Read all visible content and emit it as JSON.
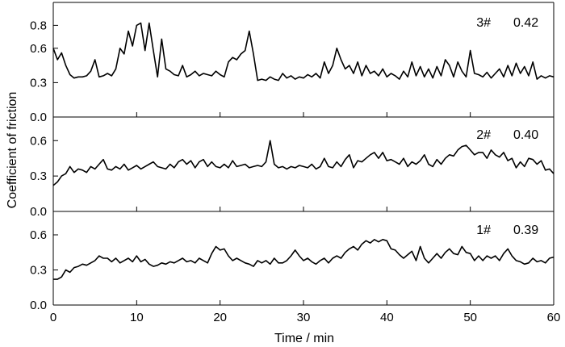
{
  "chart_data": {
    "type": "line",
    "title": "",
    "xlabel": "Time / min",
    "ylabel": "Coefficient of friction",
    "xlim": [
      0,
      60
    ],
    "x_ticks": [
      0,
      10,
      20,
      30,
      40,
      50,
      60
    ],
    "x_tick_labels": [
      "0",
      "10",
      "20",
      "30",
      "40",
      "50",
      "60"
    ],
    "grid": false,
    "panels": [
      {
        "label": "3#",
        "value": "0.42",
        "ylim": [
          0,
          1.0
        ],
        "y_ticks": [
          0.0,
          0.3,
          0.6,
          0.8
        ],
        "y_tick_labels": [
          "0.0",
          "0.3",
          "0.6",
          "0.8"
        ],
        "x": [
          0,
          0.5,
          1,
          1.5,
          2,
          2.5,
          3,
          3.5,
          4,
          4.5,
          5,
          5.5,
          6,
          6.5,
          7,
          7.5,
          8,
          8.5,
          9,
          9.5,
          10,
          10.5,
          11,
          11.5,
          12,
          12.5,
          13,
          13.5,
          14,
          14.5,
          15,
          15.5,
          16,
          16.5,
          17,
          17.5,
          18,
          18.5,
          19,
          19.5,
          20,
          20.5,
          21,
          21.5,
          22,
          22.5,
          23,
          23.5,
          24,
          24.5,
          25,
          25.5,
          26,
          26.5,
          27,
          27.5,
          28,
          28.5,
          29,
          29.5,
          30,
          30.5,
          31,
          31.5,
          32,
          32.5,
          33,
          33.5,
          34,
          34.5,
          35,
          35.5,
          36,
          36.5,
          37,
          37.5,
          38,
          38.5,
          39,
          39.5,
          40,
          40.5,
          41,
          41.5,
          42,
          42.5,
          43,
          43.5,
          44,
          44.5,
          45,
          45.5,
          46,
          46.5,
          47,
          47.5,
          48,
          48.5,
          49,
          49.5,
          50,
          50.5,
          51,
          51.5,
          52,
          52.5,
          53,
          53.5,
          54,
          54.5,
          55,
          55.5,
          56,
          56.5,
          57,
          57.5,
          58,
          58.5,
          59,
          59.5,
          60
        ],
        "y": [
          0.6,
          0.5,
          0.56,
          0.45,
          0.37,
          0.34,
          0.35,
          0.35,
          0.36,
          0.4,
          0.5,
          0.35,
          0.36,
          0.38,
          0.36,
          0.42,
          0.6,
          0.55,
          0.75,
          0.62,
          0.8,
          0.82,
          0.58,
          0.82,
          0.58,
          0.35,
          0.68,
          0.42,
          0.4,
          0.37,
          0.36,
          0.45,
          0.35,
          0.37,
          0.4,
          0.36,
          0.38,
          0.37,
          0.36,
          0.4,
          0.37,
          0.35,
          0.48,
          0.52,
          0.5,
          0.55,
          0.58,
          0.75,
          0.55,
          0.32,
          0.33,
          0.32,
          0.35,
          0.33,
          0.32,
          0.38,
          0.34,
          0.36,
          0.33,
          0.35,
          0.34,
          0.37,
          0.35,
          0.38,
          0.34,
          0.48,
          0.38,
          0.45,
          0.6,
          0.5,
          0.42,
          0.45,
          0.38,
          0.48,
          0.36,
          0.45,
          0.38,
          0.4,
          0.36,
          0.42,
          0.35,
          0.38,
          0.36,
          0.33,
          0.4,
          0.35,
          0.48,
          0.36,
          0.44,
          0.35,
          0.42,
          0.34,
          0.44,
          0.36,
          0.5,
          0.45,
          0.35,
          0.48,
          0.4,
          0.35,
          0.58,
          0.38,
          0.37,
          0.35,
          0.39,
          0.34,
          0.38,
          0.42,
          0.35,
          0.45,
          0.36,
          0.47,
          0.38,
          0.44,
          0.36,
          0.48,
          0.33,
          0.36,
          0.34,
          0.36,
          0.35
        ]
      },
      {
        "label": "2#",
        "value": "0.40",
        "ylim": [
          0,
          0.8
        ],
        "y_ticks": [
          0.0,
          0.3,
          0.6
        ],
        "y_tick_labels": [
          "0.0",
          "0.3",
          "0.6"
        ],
        "x": [
          0,
          0.5,
          1,
          1.5,
          2,
          2.5,
          3,
          3.5,
          4,
          4.5,
          5,
          5.5,
          6,
          6.5,
          7,
          7.5,
          8,
          8.5,
          9,
          9.5,
          10,
          10.5,
          11,
          11.5,
          12,
          12.5,
          13,
          13.5,
          14,
          14.5,
          15,
          15.5,
          16,
          16.5,
          17,
          17.5,
          18,
          18.5,
          19,
          19.5,
          20,
          20.5,
          21,
          21.5,
          22,
          22.5,
          23,
          23.5,
          24,
          24.5,
          25,
          25.5,
          26,
          26.5,
          27,
          27.5,
          28,
          28.5,
          29,
          29.5,
          30,
          30.5,
          31,
          31.5,
          32,
          32.5,
          33,
          33.5,
          34,
          34.5,
          35,
          35.5,
          36,
          36.5,
          37,
          37.5,
          38,
          38.5,
          39,
          39.5,
          40,
          40.5,
          41,
          41.5,
          42,
          42.5,
          43,
          43.5,
          44,
          44.5,
          45,
          45.5,
          46,
          46.5,
          47,
          47.5,
          48,
          48.5,
          49,
          49.5,
          50,
          50.5,
          51,
          51.5,
          52,
          52.5,
          53,
          53.5,
          54,
          54.5,
          55,
          55.5,
          56,
          56.5,
          57,
          57.5,
          58,
          58.5,
          59,
          59.5,
          60
        ],
        "y": [
          0.22,
          0.25,
          0.3,
          0.32,
          0.38,
          0.33,
          0.36,
          0.35,
          0.33,
          0.38,
          0.36,
          0.4,
          0.44,
          0.36,
          0.35,
          0.38,
          0.36,
          0.4,
          0.35,
          0.37,
          0.39,
          0.36,
          0.38,
          0.4,
          0.42,
          0.38,
          0.37,
          0.36,
          0.4,
          0.37,
          0.42,
          0.44,
          0.4,
          0.43,
          0.37,
          0.42,
          0.44,
          0.38,
          0.42,
          0.38,
          0.37,
          0.4,
          0.37,
          0.43,
          0.38,
          0.39,
          0.4,
          0.37,
          0.38,
          0.39,
          0.38,
          0.42,
          0.6,
          0.4,
          0.37,
          0.38,
          0.36,
          0.38,
          0.37,
          0.39,
          0.38,
          0.37,
          0.4,
          0.36,
          0.38,
          0.45,
          0.38,
          0.37,
          0.42,
          0.38,
          0.44,
          0.48,
          0.37,
          0.43,
          0.42,
          0.45,
          0.48,
          0.5,
          0.45,
          0.5,
          0.43,
          0.44,
          0.42,
          0.4,
          0.45,
          0.38,
          0.42,
          0.4,
          0.43,
          0.48,
          0.4,
          0.38,
          0.44,
          0.4,
          0.45,
          0.48,
          0.47,
          0.52,
          0.55,
          0.56,
          0.52,
          0.48,
          0.5,
          0.5,
          0.45,
          0.52,
          0.48,
          0.46,
          0.5,
          0.43,
          0.45,
          0.37,
          0.42,
          0.38,
          0.45,
          0.44,
          0.4,
          0.43,
          0.35,
          0.36,
          0.32
        ]
      },
      {
        "label": "1#",
        "value": "0.39",
        "ylim": [
          0,
          0.8
        ],
        "y_ticks": [
          0.0,
          0.3,
          0.6
        ],
        "y_tick_labels": [
          "0.0",
          "0.3",
          "0.6"
        ],
        "x": [
          0,
          0.5,
          1,
          1.5,
          2,
          2.5,
          3,
          3.5,
          4,
          4.5,
          5,
          5.5,
          6,
          6.5,
          7,
          7.5,
          8,
          8.5,
          9,
          9.5,
          10,
          10.5,
          11,
          11.5,
          12,
          12.5,
          13,
          13.5,
          14,
          14.5,
          15,
          15.5,
          16,
          16.5,
          17,
          17.5,
          18,
          18.5,
          19,
          19.5,
          20,
          20.5,
          21,
          21.5,
          22,
          22.5,
          23,
          23.5,
          24,
          24.5,
          25,
          25.5,
          26,
          26.5,
          27,
          27.5,
          28,
          28.5,
          29,
          29.5,
          30,
          30.5,
          31,
          31.5,
          32,
          32.5,
          33,
          33.5,
          34,
          34.5,
          35,
          35.5,
          36,
          36.5,
          37,
          37.5,
          38,
          38.5,
          39,
          39.5,
          40,
          40.5,
          41,
          41.5,
          42,
          42.5,
          43,
          43.5,
          44,
          44.5,
          45,
          45.5,
          46,
          46.5,
          47,
          47.5,
          48,
          48.5,
          49,
          49.5,
          50,
          50.5,
          51,
          51.5,
          52,
          52.5,
          53,
          53.5,
          54,
          54.5,
          55,
          55.5,
          56,
          56.5,
          57,
          57.5,
          58,
          58.5,
          59,
          59.5,
          60
        ],
        "y": [
          0.22,
          0.22,
          0.24,
          0.3,
          0.28,
          0.32,
          0.33,
          0.35,
          0.34,
          0.36,
          0.38,
          0.42,
          0.4,
          0.4,
          0.37,
          0.4,
          0.36,
          0.38,
          0.4,
          0.37,
          0.42,
          0.37,
          0.39,
          0.35,
          0.33,
          0.34,
          0.36,
          0.35,
          0.37,
          0.36,
          0.38,
          0.4,
          0.37,
          0.38,
          0.36,
          0.4,
          0.38,
          0.36,
          0.44,
          0.5,
          0.47,
          0.48,
          0.42,
          0.38,
          0.4,
          0.38,
          0.36,
          0.35,
          0.33,
          0.38,
          0.36,
          0.38,
          0.35,
          0.4,
          0.36,
          0.36,
          0.38,
          0.42,
          0.47,
          0.42,
          0.38,
          0.4,
          0.37,
          0.35,
          0.38,
          0.4,
          0.36,
          0.4,
          0.42,
          0.4,
          0.45,
          0.48,
          0.5,
          0.47,
          0.52,
          0.55,
          0.53,
          0.56,
          0.54,
          0.56,
          0.55,
          0.48,
          0.47,
          0.43,
          0.4,
          0.43,
          0.46,
          0.38,
          0.5,
          0.4,
          0.36,
          0.4,
          0.44,
          0.4,
          0.45,
          0.48,
          0.44,
          0.43,
          0.5,
          0.45,
          0.44,
          0.38,
          0.42,
          0.38,
          0.42,
          0.4,
          0.42,
          0.38,
          0.44,
          0.48,
          0.42,
          0.38,
          0.37,
          0.35,
          0.36,
          0.4,
          0.37,
          0.38,
          0.36,
          0.4,
          0.41
        ]
      }
    ]
  }
}
